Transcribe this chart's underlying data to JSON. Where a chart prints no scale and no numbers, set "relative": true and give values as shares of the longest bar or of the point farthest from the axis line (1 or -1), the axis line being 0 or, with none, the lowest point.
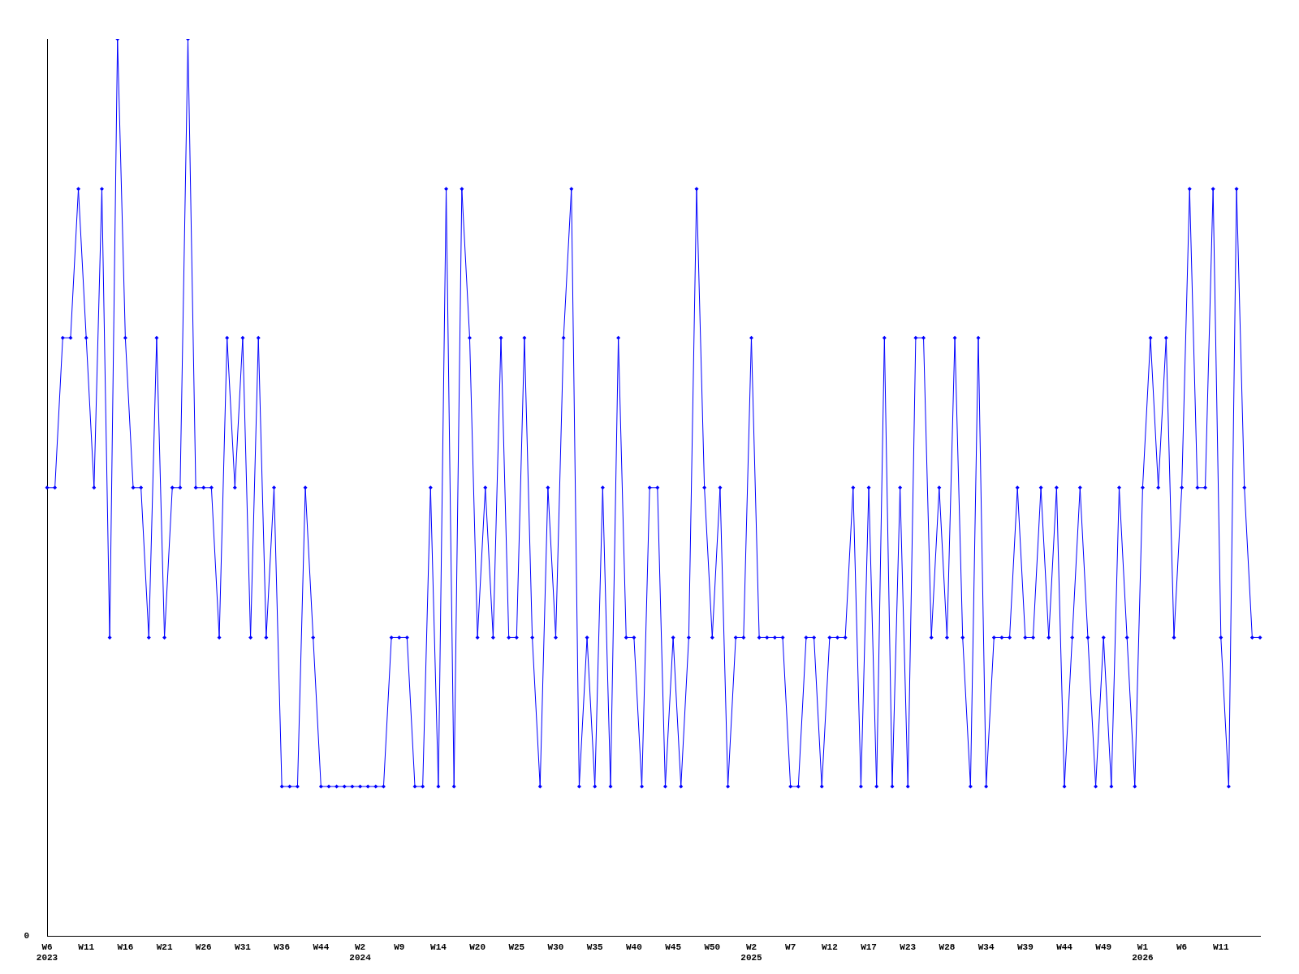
{
  "chart_data": {
    "type": "line",
    "relative": true,
    "color": "#0000ff",
    "marker": "diamond",
    "grid": false,
    "legend": false,
    "annotations": [
      "0"
    ],
    "categories": [
      "W6\n2023",
      null,
      null,
      null,
      null,
      "W11",
      null,
      null,
      null,
      null,
      "W16",
      null,
      null,
      null,
      null,
      "W21",
      null,
      null,
      null,
      null,
      "W26",
      null,
      null,
      null,
      null,
      "W31",
      null,
      null,
      null,
      null,
      "W36",
      null,
      null,
      null,
      null,
      "W44",
      null,
      null,
      null,
      null,
      "W2\n2024",
      null,
      null,
      null,
      null,
      "W9",
      null,
      null,
      null,
      null,
      "W14",
      null,
      null,
      null,
      null,
      "W20",
      null,
      null,
      null,
      null,
      "W25",
      null,
      null,
      null,
      null,
      "W30",
      null,
      null,
      null,
      null,
      "W35",
      null,
      null,
      null,
      null,
      "W40",
      null,
      null,
      null,
      null,
      "W45",
      null,
      null,
      null,
      null,
      "W50",
      null,
      null,
      null,
      null,
      "W2\n2025",
      null,
      null,
      null,
      null,
      "W7",
      null,
      null,
      null,
      null,
      "W12",
      null,
      null,
      null,
      null,
      "W17",
      null,
      null,
      null,
      null,
      "W23",
      null,
      null,
      null,
      null,
      "W28",
      null,
      null,
      null,
      null,
      "W34",
      null,
      null,
      null,
      null,
      "W39",
      null,
      null,
      null,
      null,
      "W44",
      null,
      null,
      null,
      null,
      "W49",
      null,
      null,
      null,
      null,
      "W1\n2026",
      null,
      null,
      null,
      null,
      "W6",
      null,
      null,
      null,
      null,
      "W11",
      null,
      null,
      null,
      null,
      null
    ],
    "values": [
      0.5,
      0.5,
      0.667,
      0.667,
      0.833,
      0.667,
      0.5,
      0.833,
      0.333,
      1,
      0.667,
      0.5,
      0.5,
      0.333,
      0.667,
      0.333,
      0.5,
      0.5,
      1,
      0.5,
      0.5,
      0.5,
      0.333,
      0.667,
      0.5,
      0.667,
      0.333,
      0.667,
      0.333,
      0.5,
      0.167,
      0.167,
      0.167,
      0.5,
      0.333,
      0.167,
      0.167,
      0.167,
      0.167,
      0.167,
      0.167,
      0.167,
      0.167,
      0.167,
      0.333,
      0.333,
      0.333,
      0.167,
      0.167,
      0.5,
      0.167,
      0.833,
      0.167,
      0.833,
      0.667,
      0.333,
      0.5,
      0.333,
      0.667,
      0.333,
      0.333,
      0.667,
      0.333,
      0.167,
      0.5,
      0.333,
      0.667,
      0.833,
      0.167,
      0.333,
      0.167,
      0.5,
      0.167,
      0.667,
      0.333,
      0.333,
      0.167,
      0.5,
      0.5,
      0.167,
      0.333,
      0.167,
      0.333,
      0.833,
      0.5,
      0.333,
      0.5,
      0.167,
      0.333,
      0.333,
      0.667,
      0.333,
      0.333,
      0.333,
      0.333,
      0.167,
      0.167,
      0.333,
      0.333,
      0.167,
      0.333,
      0.333,
      0.333,
      0.5,
      0.167,
      0.5,
      0.167,
      0.667,
      0.167,
      0.5,
      0.167,
      0.667,
      0.667,
      0.333,
      0.5,
      0.333,
      0.667,
      0.333,
      0.167,
      0.667,
      0.167,
      0.333,
      0.333,
      0.333,
      0.5,
      0.333,
      0.333,
      0.5,
      0.333,
      0.5,
      0.167,
      0.333,
      0.5,
      0.333,
      0.167,
      0.333,
      0.167,
      0.5,
      0.333,
      0.167,
      0.5,
      0.667,
      0.5,
      0.667,
      0.333,
      0.5,
      0.833,
      0.5,
      0.5,
      0.833,
      0.333,
      0.167,
      0.833,
      0.5,
      0.333,
      0.333
    ]
  }
}
